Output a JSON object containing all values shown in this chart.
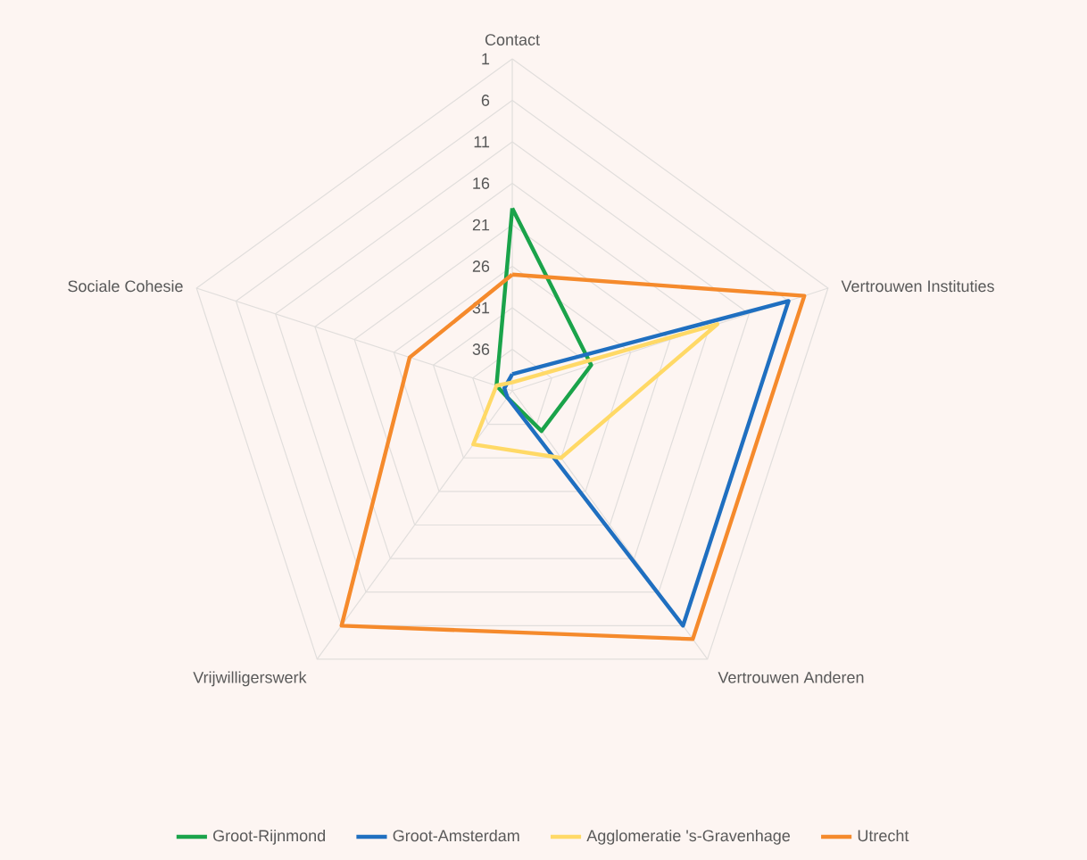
{
  "chart_data": {
    "type": "radar",
    "categories": [
      "Contact",
      "Vertrouwen Instituties",
      "Vertrouwen Anderen",
      "Vrijwilligerswerk",
      "Sociale Cohesie"
    ],
    "ylim": [
      41,
      1
    ],
    "yticks": [
      1,
      6,
      11,
      16,
      21,
      26,
      31,
      36
    ],
    "grid": true,
    "legend": "bottom",
    "marker": "none",
    "series": [
      {
        "name": "Groot-Rijnmond",
        "color": "#1aa34a",
        "values": [
          19,
          31,
          35,
          40,
          39
        ]
      },
      {
        "name": "Groot-Amsterdam",
        "color": "#1f6fc0",
        "values": [
          39,
          6,
          6,
          40,
          40
        ]
      },
      {
        "name": "Agglomeratie 's-Gravenhage",
        "color": "#ffd966",
        "values": [
          40,
          15,
          31,
          33,
          39
        ]
      },
      {
        "name": "Utrecht",
        "color": "#f58a2c",
        "values": [
          27,
          4,
          4,
          6,
          28
        ]
      }
    ]
  }
}
